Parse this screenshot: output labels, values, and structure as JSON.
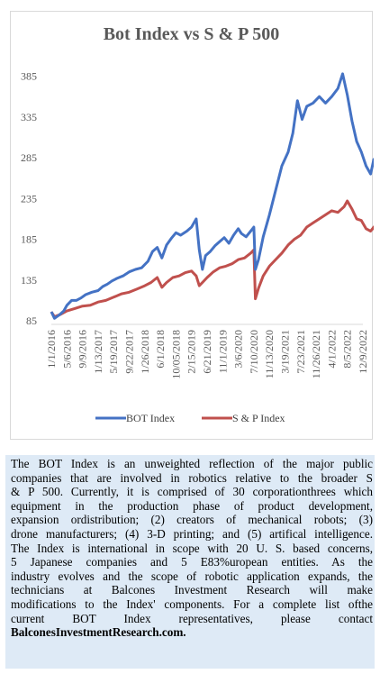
{
  "chart_data": {
    "type": "line",
    "title": "Bot Index vs S & P 500",
    "xlabel": "",
    "ylabel": "",
    "ylim": [
      85,
      400
    ],
    "y_ticks": [
      85,
      135,
      185,
      235,
      285,
      335,
      385
    ],
    "x_tick_labels": [
      "1/1/2016",
      "5/6/2016",
      "9/9/2016",
      "1/13/2017",
      "5/19/2017",
      "9/22/2017",
      "1/26/2018",
      "6/1/2018",
      "10/05/2018",
      "2/15/2019",
      "6/21/2019",
      "11/1/2019",
      "3/6/2020",
      "7/10/2020",
      "11/13/2020",
      "3/19/2021",
      "7/23/2021",
      "11/26/2021",
      "4/1/2022",
      "8/5/2022",
      "12/9/2022"
    ],
    "grid": false,
    "legend_position": "bottom",
    "series": [
      {
        "name": "BOT Index",
        "color": "#4472c4",
        "values": [
          [
            0,
            96
          ],
          [
            0.2,
            88
          ],
          [
            0.5,
            92
          ],
          [
            0.8,
            97
          ],
          [
            1.0,
            104
          ],
          [
            1.3,
            110
          ],
          [
            1.6,
            110
          ],
          [
            1.9,
            113
          ],
          [
            2.2,
            117
          ],
          [
            2.6,
            120
          ],
          [
            3.0,
            122
          ],
          [
            3.3,
            127
          ],
          [
            3.6,
            130
          ],
          [
            3.9,
            134
          ],
          [
            4.2,
            137
          ],
          [
            4.6,
            140
          ],
          [
            5.0,
            145
          ],
          [
            5.4,
            148
          ],
          [
            5.8,
            150
          ],
          [
            6.2,
            158
          ],
          [
            6.5,
            170
          ],
          [
            6.8,
            175
          ],
          [
            7.1,
            162
          ],
          [
            7.4,
            178
          ],
          [
            7.7,
            186
          ],
          [
            8.0,
            193
          ],
          [
            8.3,
            190
          ],
          [
            8.7,
            195
          ],
          [
            9.0,
            200
          ],
          [
            9.3,
            210
          ],
          [
            9.5,
            172
          ],
          [
            9.7,
            148
          ],
          [
            9.9,
            165
          ],
          [
            10.2,
            170
          ],
          [
            10.5,
            177
          ],
          [
            10.8,
            182
          ],
          [
            11.1,
            187
          ],
          [
            11.4,
            180
          ],
          [
            11.7,
            190
          ],
          [
            12.0,
            198
          ],
          [
            12.2,
            192
          ],
          [
            12.5,
            188
          ],
          [
            12.8,
            195
          ],
          [
            13.0,
            200
          ],
          [
            13.1,
            148
          ],
          [
            13.3,
            160
          ],
          [
            13.6,
            188
          ],
          [
            14.0,
            215
          ],
          [
            14.4,
            245
          ],
          [
            14.8,
            275
          ],
          [
            15.2,
            292
          ],
          [
            15.5,
            315
          ],
          [
            15.8,
            355
          ],
          [
            16.1,
            332
          ],
          [
            16.4,
            348
          ],
          [
            16.8,
            352
          ],
          [
            17.2,
            360
          ],
          [
            17.6,
            352
          ],
          [
            18.0,
            360
          ],
          [
            18.4,
            370
          ],
          [
            18.7,
            388
          ],
          [
            19.0,
            362
          ],
          [
            19.3,
            330
          ],
          [
            19.6,
            305
          ],
          [
            19.9,
            292
          ],
          [
            20.2,
            275
          ],
          [
            20.5,
            265
          ],
          [
            20.7,
            283
          ],
          [
            20.9,
            260
          ],
          [
            21.1,
            248
          ],
          [
            21.3,
            270
          ],
          [
            21.5,
            290
          ],
          [
            21.7,
            305
          ],
          [
            22.0,
            305
          ]
        ]
      },
      {
        "name": "S & P Index",
        "color": "#c0504d",
        "values": [
          [
            0,
            96
          ],
          [
            0.2,
            90
          ],
          [
            0.6,
            93
          ],
          [
            1.0,
            97
          ],
          [
            1.5,
            100
          ],
          [
            2.0,
            103
          ],
          [
            2.5,
            104
          ],
          [
            3.0,
            108
          ],
          [
            3.5,
            110
          ],
          [
            4.0,
            114
          ],
          [
            4.5,
            118
          ],
          [
            5.0,
            120
          ],
          [
            5.5,
            124
          ],
          [
            6.0,
            128
          ],
          [
            6.4,
            132
          ],
          [
            6.8,
            138
          ],
          [
            7.1,
            126
          ],
          [
            7.4,
            132
          ],
          [
            7.8,
            138
          ],
          [
            8.2,
            140
          ],
          [
            8.6,
            144
          ],
          [
            9.0,
            146
          ],
          [
            9.3,
            140
          ],
          [
            9.5,
            128
          ],
          [
            9.7,
            132
          ],
          [
            10.0,
            138
          ],
          [
            10.4,
            145
          ],
          [
            10.8,
            150
          ],
          [
            11.2,
            152
          ],
          [
            11.6,
            155
          ],
          [
            12.0,
            160
          ],
          [
            12.4,
            162
          ],
          [
            12.8,
            168
          ],
          [
            13.0,
            172
          ],
          [
            13.1,
            112
          ],
          [
            13.3,
            125
          ],
          [
            13.6,
            140
          ],
          [
            14.0,
            152
          ],
          [
            14.4,
            160
          ],
          [
            14.8,
            168
          ],
          [
            15.2,
            178
          ],
          [
            15.6,
            185
          ],
          [
            16.0,
            190
          ],
          [
            16.4,
            200
          ],
          [
            16.8,
            205
          ],
          [
            17.2,
            210
          ],
          [
            17.6,
            215
          ],
          [
            18.0,
            220
          ],
          [
            18.4,
            218
          ],
          [
            18.8,
            225
          ],
          [
            19.0,
            232
          ],
          [
            19.3,
            222
          ],
          [
            19.6,
            210
          ],
          [
            19.9,
            208
          ],
          [
            20.2,
            198
          ],
          [
            20.5,
            195
          ],
          [
            20.7,
            200
          ],
          [
            20.9,
            190
          ],
          [
            21.1,
            182
          ],
          [
            21.3,
            188
          ],
          [
            21.5,
            195
          ],
          [
            21.7,
            192
          ],
          [
            22.0,
            200
          ]
        ]
      }
    ]
  },
  "caption": {
    "lines": [
      "The BOT Index is an unweighted reflection of the major public",
      "companies that are involved in robotics relative to the broader S",
      "& P 500. Currently, it is comprised of 30 corporationthrees which",
      "equipment in the production phase of product development,",
      "expansion ordistribution; (2) creators of mechanical robots; (3)",
      "drone manufacturers; (4) 3-D printing; and (5) artifical intelligence.",
      "The Index is international in scope with 20 U. S. based concerns,",
      "5 Japanese companies and 5 E83%uropean entities. As the",
      "industry evolves and the scope of robotic application expands, the",
      "technicians at Balcones Investment Research will make",
      "modifications to the Index' components. For a complete list ofthe",
      "current BOT Index representatives, please contact"
    ],
    "link": "BalconesInvestmentResearch.com."
  }
}
